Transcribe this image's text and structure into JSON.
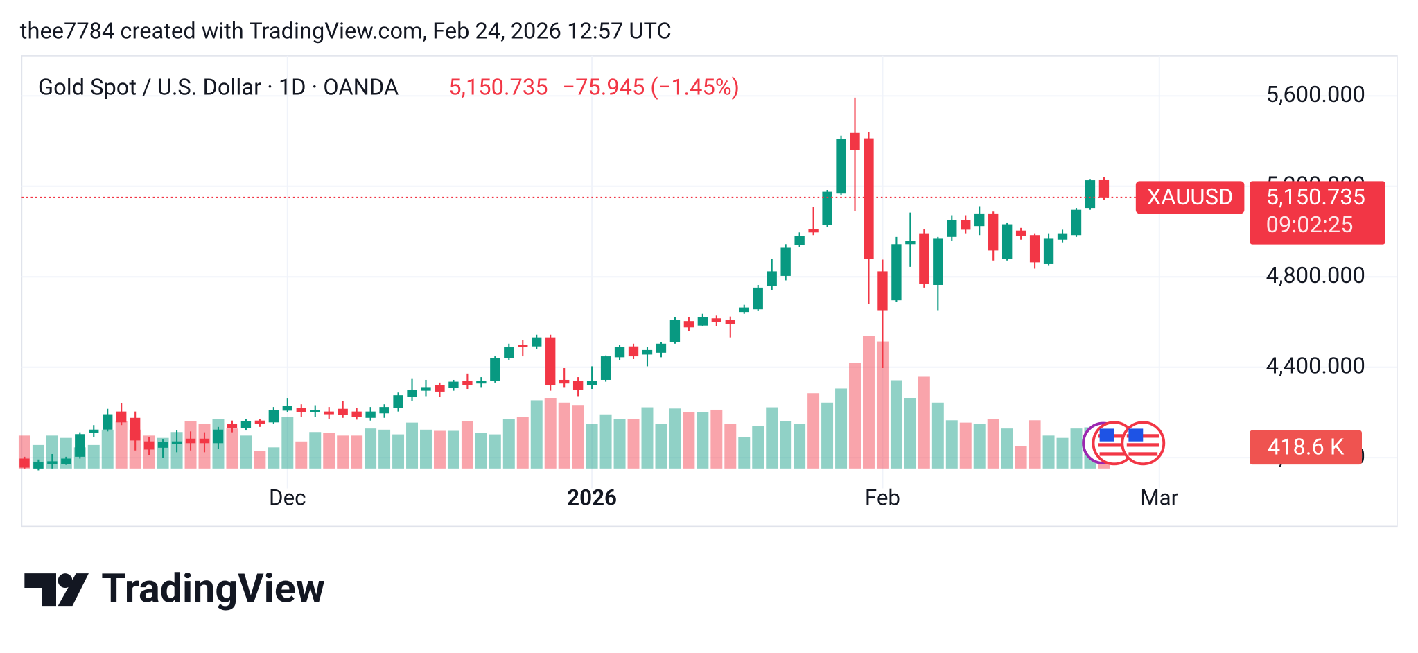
{
  "chart_data": {
    "type": "candlestick",
    "attribution": "thee7784 created with TradingView.com, Feb 24, 2026 12:57 UTC",
    "title": "Gold Spot / U.S. Dollar · 1D · OANDA",
    "last_price": {
      "value": 5150.735,
      "label": "5,150.735"
    },
    "change": "−75.945 (−1.45%)",
    "symbol": "XAUUSD",
    "countdown": "09:02:25",
    "brand": "TradingView",
    "up_color": "#089981",
    "down_color": "#f23645",
    "grid": true,
    "xlim": [
      -0.2,
      88.4
    ],
    "xticks": [
      {
        "value": 19,
        "label": "Dec"
      },
      {
        "value": 41,
        "label": "2026"
      },
      {
        "value": 62,
        "label": "Feb"
      },
      {
        "value": 82,
        "label": "Mar"
      }
    ],
    "ylim": [
      3904,
      5776
    ],
    "yticks": [
      {
        "value": 4000,
        "label": "4,000.000"
      },
      {
        "value": 4400,
        "label": "4,400.000"
      },
      {
        "value": 4800,
        "label": "4,800.000"
      },
      {
        "value": 5200,
        "label": "5,200.000"
      },
      {
        "value": 5600,
        "label": "5,600.000"
      }
    ],
    "open": [
      3996,
      3952,
      3972,
      3972,
      4004,
      4108,
      4124,
      4204,
      4176,
      4072,
      4044,
      4060,
      4084,
      4084,
      4064,
      4148,
      4132,
      4164,
      4156,
      4208,
      4220,
      4200,
      4204,
      4216,
      4204,
      4176,
      4196,
      4220,
      4268,
      4296,
      4320,
      4308,
      4340,
      4328,
      4340,
      4440,
      4500,
      4492,
      4532,
      4344,
      4340,
      4320,
      4344,
      4444,
      4492,
      4456,
      4464,
      4512,
      4604,
      4584,
      4616,
      4608,
      4644,
      4656,
      4760,
      4804,
      4940,
      5012,
      5028,
      5168,
      5436,
      5412,
      4824,
      4696,
      4944,
      4992,
      4764,
      4976,
      5052,
      5024,
      5080,
      4880,
      5004,
      4984,
      4856,
      4964,
      4984,
      5104,
      5230
    ],
    "high": [
      4004,
      3992,
      4016,
      4004,
      4112,
      4144,
      4216,
      4240,
      4204,
      4092,
      4080,
      4120,
      4116,
      4112,
      4136,
      4164,
      4172,
      4172,
      4224,
      4264,
      4236,
      4232,
      4224,
      4252,
      4220,
      4224,
      4236,
      4288,
      4348,
      4344,
      4332,
      4344,
      4372,
      4356,
      4448,
      4504,
      4520,
      4544,
      4544,
      4396,
      4356,
      4404,
      4452,
      4500,
      4504,
      4488,
      4512,
      4620,
      4620,
      4636,
      4628,
      4624,
      4676,
      4764,
      4880,
      4944,
      4996,
      5108,
      5184,
      5424,
      5592,
      5440,
      4876,
      4976,
      5084,
      5012,
      4976,
      5072,
      5072,
      5112,
      5088,
      5040,
      5016,
      4992,
      4992,
      5008,
      5104,
      5232,
      5240
    ],
    "low": [
      3952,
      3944,
      3952,
      3968,
      3996,
      4092,
      4116,
      4144,
      4032,
      4012,
      4000,
      4024,
      4032,
      4024,
      4040,
      4112,
      4120,
      4136,
      4148,
      4200,
      4180,
      4180,
      4172,
      4176,
      4168,
      4164,
      4176,
      4204,
      4252,
      4272,
      4268,
      4296,
      4304,
      4312,
      4332,
      4432,
      4448,
      4480,
      4296,
      4312,
      4272,
      4304,
      4336,
      4432,
      4436,
      4404,
      4444,
      4504,
      4560,
      4580,
      4580,
      4532,
      4636,
      4648,
      4740,
      4784,
      4932,
      4984,
      5020,
      5160,
      5092,
      4680,
      4396,
      4688,
      4844,
      4752,
      4652,
      4960,
      4992,
      4984,
      4872,
      4872,
      4964,
      4836,
      4848,
      4952,
      4976,
      5096,
      5138
    ],
    "close": [
      3956,
      3980,
      3984,
      3996,
      4104,
      4124,
      4192,
      4156,
      4076,
      4036,
      4068,
      4072,
      4064,
      4064,
      4124,
      4132,
      4160,
      4148,
      4212,
      4228,
      4200,
      4212,
      4192,
      4188,
      4180,
      4204,
      4224,
      4276,
      4300,
      4312,
      4292,
      4336,
      4320,
      4340,
      4440,
      4488,
      4488,
      4532,
      4320,
      4328,
      4300,
      4340,
      4448,
      4488,
      4448,
      4476,
      4504,
      4608,
      4576,
      4620,
      4600,
      4592,
      4664,
      4752,
      4824,
      4928,
      4980,
      4996,
      5176,
      5408,
      5360,
      4880,
      4652,
      4944,
      4960,
      4768,
      4968,
      5052,
      5008,
      5080,
      4916,
      5032,
      4980,
      4864,
      4968,
      4992,
      5096,
      5226.68,
      5150.735
    ],
    "volume": [
      652,
      466,
      652,
      606,
      419,
      466,
      769,
      932,
      769,
      652,
      606,
      722,
      932,
      885,
      979,
      792,
      652,
      350,
      419,
      1025,
      536,
      722,
      699,
      652,
      652,
      792,
      769,
      676,
      909,
      769,
      746,
      746,
      932,
      699,
      676,
      979,
      1025,
      1351,
      1398,
      1305,
      1258,
      885,
      1072,
      979,
      979,
      1212,
      885,
      1188,
      1118,
      1118,
      1165,
      885,
      629,
      839,
      1212,
      932,
      885,
      1491,
      1305,
      1584,
      2097,
      2633,
      2516,
      1748,
      1398,
      1817,
      1305,
      955,
      909,
      885,
      979,
      792,
      443,
      955,
      652,
      606,
      792,
      815,
      418.6
    ],
    "volume_last_label": "418.6 K"
  }
}
